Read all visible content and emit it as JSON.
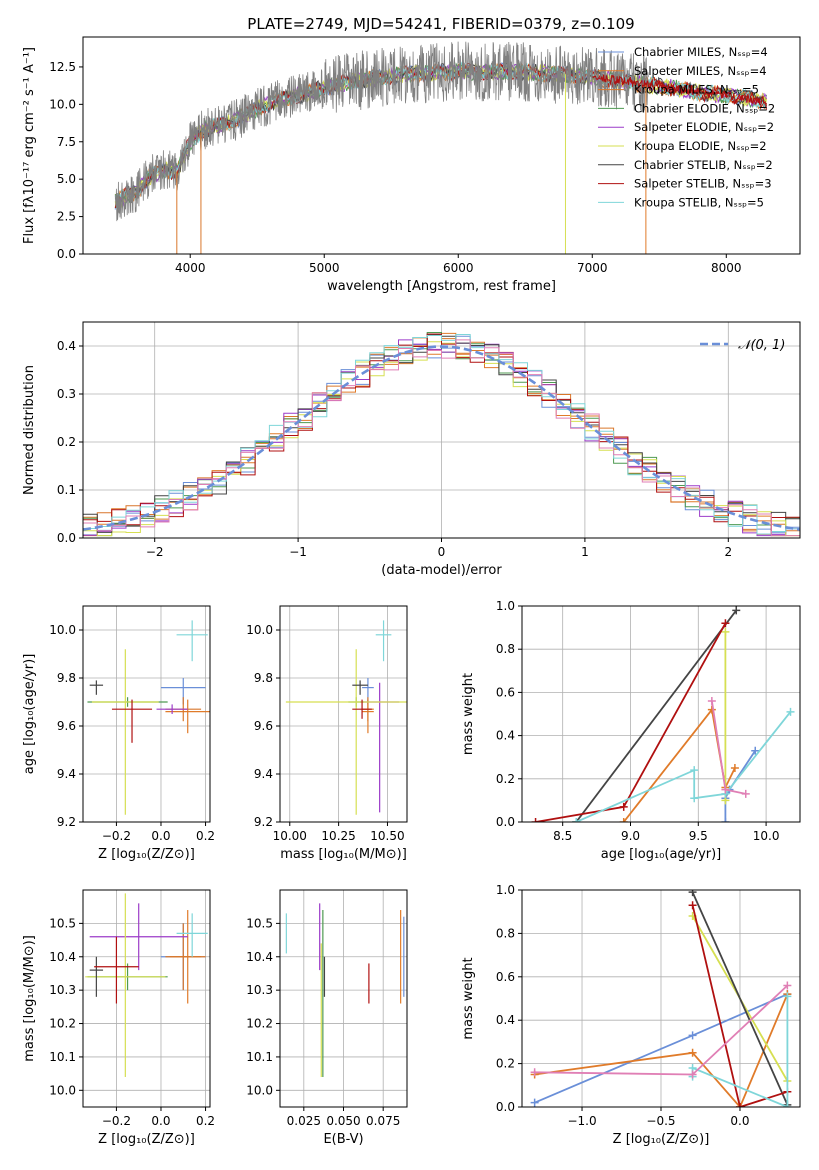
{
  "figure": {
    "title": "PLATE=2749, MJD=54241, FIBERID=0379, z=0.109"
  },
  "colors": {
    "Chabrier MILES": "#6a8fd8",
    "Salpeter MILES": "#e07b2a",
    "Kroupa MILES": "#d9772b",
    "Chabrier ELODIE": "#4f9a52",
    "Salpeter ELODIE": "#9c3cc9",
    "Kroupa ELODIE": "#d6df52",
    "Chabrier STELIB": "#444444",
    "Salpeter STELIB": "#b01010",
    "Kroupa STELIB": "#7fd6d9",
    "data": "#808080",
    "pink": "#e07fb5",
    "gauss": "#6a8fd8"
  },
  "chart_data": [
    {
      "id": "spectrum",
      "type": "line",
      "xlabel": "wavelength [Angstrom, rest frame]",
      "ylabel": "Flux [fλ10⁻¹⁷ erg cm⁻² s⁻¹ A⁻¹]",
      "xlim": [
        3200,
        8550
      ],
      "ylim": [
        0,
        14.5
      ],
      "xticks": [
        4000,
        5000,
        6000,
        7000,
        8000
      ],
      "yticks": [
        0.0,
        2.5,
        5.0,
        7.5,
        10.0,
        12.5
      ],
      "legend_position": "upper-right",
      "legend": [
        "Chabrier MILES, Nₛₛₚ=4",
        "Salpeter MILES, Nₛₛₚ=4",
        "Kroupa MILES, Nₛₛₚ=5",
        "Chabrier ELODIE, Nₛₛₚ=2",
        "Salpeter ELODIE, Nₛₛₚ=2",
        "Kroupa ELODIE, Nₛₛₚ=2",
        "Chabrier STELIB, Nₛₛₚ=2",
        "Salpeter STELIB, Nₛₛₚ=3",
        "Kroupa STELIB, Nₛₛₚ=5"
      ],
      "legend_models": [
        "Chabrier MILES",
        "Salpeter MILES",
        "Kroupa MILES",
        "Chabrier ELODIE",
        "Salpeter ELODIE",
        "Kroupa ELODIE",
        "Chabrier STELIB",
        "Salpeter STELIB",
        "Kroupa STELIB"
      ],
      "continuum": {
        "x": [
          3440,
          3600,
          3700,
          3800,
          3900,
          4000,
          4100,
          4300,
          4500,
          4700,
          4900,
          5000,
          5200,
          5400,
          5600,
          5800,
          6000,
          6200,
          6400,
          6600,
          6800,
          7000,
          7200,
          7400,
          7600,
          7800,
          8000,
          8300
        ],
        "y": [
          3.5,
          4.2,
          5.2,
          5.6,
          5.5,
          7.5,
          8.3,
          8.8,
          9.7,
          10.4,
          10.8,
          11.1,
          11.5,
          11.8,
          12.0,
          12.1,
          12.2,
          12.2,
          12.2,
          12.1,
          12.0,
          11.8,
          11.6,
          11.3,
          11.1,
          10.8,
          10.6,
          10.2
        ]
      },
      "data_xrange": [
        3440,
        7420
      ],
      "dropouts": [
        {
          "x": 3900,
          "model": "Kroupa MILES"
        },
        {
          "x": 4080,
          "model": "Kroupa MILES"
        },
        {
          "x": 6800,
          "model": "Kroupa ELODIE"
        },
        {
          "x": 7400,
          "model": "Salpeter MILES"
        }
      ]
    },
    {
      "id": "residuals",
      "type": "step",
      "xlabel": "(data-model)/error",
      "ylabel": "Normed distribution",
      "xlim": [
        -2.5,
        2.5
      ],
      "ylim": [
        0,
        0.45
      ],
      "xticks": [
        -2,
        -1,
        0,
        1,
        2
      ],
      "yticks": [
        0.0,
        0.1,
        0.2,
        0.3,
        0.4
      ],
      "legend": [
        "𝒩(0, 1)"
      ],
      "legend_position": "upper-right",
      "bin_width": 0.1
    },
    {
      "id": "age-vs-Z",
      "type": "scatter",
      "xlabel": "Z [log₁₀(Z/Z⊙)]",
      "ylabel": "age  [log₁₀(age/yr)]",
      "xlim": [
        -0.35,
        0.22
      ],
      "ylim": [
        9.2,
        10.1
      ],
      "xticks": [
        -0.2,
        0.0,
        0.2
      ],
      "yticks": [
        9.2,
        9.4,
        9.6,
        9.8,
        10.0
      ],
      "points": [
        {
          "model": "Chabrier MILES",
          "x": 0.1,
          "y": 9.76,
          "xerr": 0.1,
          "yerr": [
            0.07,
            0.04
          ]
        },
        {
          "model": "Salpeter MILES",
          "x": 0.12,
          "y": 9.66,
          "xerr": 0.1,
          "yerr": [
            0.09,
            0.05
          ]
        },
        {
          "model": "Kroupa MILES",
          "x": 0.1,
          "y": 9.67,
          "xerr": 0.08,
          "yerr": [
            0.05,
            0.05
          ]
        },
        {
          "model": "Chabrier ELODIE",
          "x": -0.15,
          "y": 9.7,
          "xerr": 0.18,
          "yerr": [
            0.02,
            0.02
          ]
        },
        {
          "model": "Salpeter ELODIE",
          "x": 0.05,
          "y": 9.67,
          "xerr": 0.07,
          "yerr": [
            0.02,
            0.02
          ]
        },
        {
          "model": "Kroupa ELODIE",
          "x": -0.16,
          "y": 9.7,
          "xerr": 0.15,
          "yerr": [
            0.47,
            0.22
          ]
        },
        {
          "model": "Chabrier STELIB",
          "x": -0.29,
          "y": 9.77,
          "xerr": 0.03,
          "yerr": [
            0.04,
            0.02
          ]
        },
        {
          "model": "Salpeter STELIB",
          "x": -0.13,
          "y": 9.67,
          "xerr": 0.09,
          "yerr": [
            0.14,
            0.04
          ]
        },
        {
          "model": "Kroupa STELIB",
          "x": 0.14,
          "y": 9.98,
          "xerr": 0.07,
          "yerr": [
            0.11,
            0.06
          ]
        }
      ]
    },
    {
      "id": "age-vs-mass",
      "type": "scatter",
      "xlabel": "mass [log₁₀(M/M⊙)]",
      "ylabel": "",
      "xlim": [
        9.95,
        10.6
      ],
      "ylim": [
        9.2,
        10.1
      ],
      "xticks": [
        10.0,
        10.25,
        10.5
      ],
      "yticks": [
        9.2,
        9.4,
        9.6,
        9.8,
        10.0
      ],
      "points": [
        {
          "model": "Chabrier MILES",
          "x": 10.4,
          "y": 9.76,
          "xerr": 0.03,
          "yerr": [
            0.07,
            0.04
          ]
        },
        {
          "model": "Salpeter MILES",
          "x": 10.4,
          "y": 9.66,
          "xerr": 0.03,
          "yerr": [
            0.09,
            0.05
          ]
        },
        {
          "model": "Kroupa MILES",
          "x": 10.4,
          "y": 9.67,
          "xerr": 0.03,
          "yerr": [
            0.05,
            0.05
          ]
        },
        {
          "model": "Chabrier ELODIE",
          "x": 10.34,
          "y": 9.7,
          "xerr": 0.04,
          "yerr": [
            0.02,
            0.02
          ]
        },
        {
          "model": "Salpeter ELODIE",
          "x": 10.46,
          "y": 9.7,
          "xerr": 0.1,
          "yerr": [
            0.46,
            0.08
          ]
        },
        {
          "model": "Kroupa ELODIE",
          "x": 10.34,
          "y": 9.7,
          "xerr": 0.36,
          "yerr": [
            0.47,
            0.22
          ]
        },
        {
          "model": "Chabrier STELIB",
          "x": 10.36,
          "y": 9.77,
          "xerr": 0.04,
          "yerr": [
            0.04,
            0.02
          ]
        },
        {
          "model": "Salpeter STELIB",
          "x": 10.37,
          "y": 9.67,
          "xerr": 0.05,
          "yerr": [
            0.04,
            0.04
          ]
        },
        {
          "model": "Kroupa STELIB",
          "x": 10.48,
          "y": 9.98,
          "xerr": 0.04,
          "yerr": [
            0.11,
            0.06
          ]
        }
      ]
    },
    {
      "id": "weight-vs-age",
      "type": "line",
      "xlabel": "age  [log₁₀(age/yr)]",
      "ylabel": "mass weight",
      "xlim": [
        8.2,
        10.25
      ],
      "ylim": [
        0,
        1.0
      ],
      "xticks": [
        8.5,
        9.0,
        9.5,
        10.0
      ],
      "yticks": [
        0.0,
        0.2,
        0.4,
        0.6,
        0.8,
        1.0
      ],
      "series": [
        {
          "model": "Chabrier MILES",
          "x": [
            9.7,
            9.7,
            9.73,
            9.92
          ],
          "y": [
            0.0,
            0.11,
            0.15,
            0.33
          ]
        },
        {
          "model": "Salpeter MILES",
          "x": [
            8.95,
            9.6,
            9.7,
            9.77
          ],
          "y": [
            0.0,
            0.52,
            0.16,
            0.25
          ]
        },
        {
          "model": "Kroupa ELODIE",
          "x": [
            9.7,
            9.7
          ],
          "y": [
            0.88,
            0.1
          ]
        },
        {
          "model": "Chabrier STELIB",
          "x": [
            8.6,
            9.78
          ],
          "y": [
            0.0,
            0.98
          ]
        },
        {
          "model": "Salpeter STELIB",
          "x": [
            8.3,
            8.95,
            9.7
          ],
          "y": [
            0.0,
            0.07,
            0.92
          ]
        },
        {
          "model": "Kroupa STELIB",
          "x": [
            8.6,
            9.47,
            9.47,
            9.7,
            10.18
          ],
          "y": [
            0.0,
            0.24,
            0.11,
            0.13,
            0.51
          ]
        },
        {
          "model": "pink",
          "x": [
            9.6,
            9.7,
            9.85
          ],
          "y": [
            0.56,
            0.15,
            0.13
          ]
        }
      ]
    },
    {
      "id": "mass-vs-Z",
      "type": "scatter",
      "xlabel": "Z [log₁₀(Z/Z⊙)]",
      "ylabel": "mass [log₁₀(M/M⊙)]",
      "xlim": [
        -0.35,
        0.22
      ],
      "ylim": [
        9.95,
        10.6
      ],
      "xticks": [
        -0.2,
        0.0,
        0.2
      ],
      "yticks": [
        10.0,
        10.1,
        10.2,
        10.3,
        10.4,
        10.5
      ],
      "points": [
        {
          "model": "Chabrier MILES",
          "x": 0.1,
          "y": 10.4,
          "xerr": 0.1,
          "yerr": [
            0.1,
            0.1
          ]
        },
        {
          "model": "Salpeter MILES",
          "x": 0.12,
          "y": 10.4,
          "xerr": 0.08,
          "yerr": [
            0.14,
            0.14
          ]
        },
        {
          "model": "Kroupa MILES",
          "x": 0.1,
          "y": 10.4,
          "xerr": 0.08,
          "yerr": [
            0.1,
            0.1
          ]
        },
        {
          "model": "Chabrier ELODIE",
          "x": -0.15,
          "y": 10.34,
          "xerr": 0.18,
          "yerr": [
            0.04,
            0.04
          ]
        },
        {
          "model": "Salpeter ELODIE",
          "x": -0.1,
          "y": 10.46,
          "xerr": 0.22,
          "yerr": [
            0.1,
            0.1
          ]
        },
        {
          "model": "Kroupa ELODIE",
          "x": -0.16,
          "y": 10.34,
          "xerr": 0.18,
          "yerr": [
            0.3,
            0.25
          ]
        },
        {
          "model": "Chabrier STELIB",
          "x": -0.29,
          "y": 10.36,
          "xerr": 0.03,
          "yerr": [
            0.08,
            0.04
          ]
        },
        {
          "model": "Salpeter STELIB",
          "x": -0.2,
          "y": 10.37,
          "xerr": 0.1,
          "yerr": [
            0.11,
            0.09
          ]
        },
        {
          "model": "Kroupa STELIB",
          "x": 0.14,
          "y": 10.47,
          "xerr": 0.07,
          "yerr": [
            0.07,
            0.06
          ]
        }
      ]
    },
    {
      "id": "mass-vs-EBV",
      "type": "scatter",
      "xlabel": "E(B-V)",
      "ylabel": "",
      "xlim": [
        0.01,
        0.09
      ],
      "ylim": [
        9.95,
        10.6
      ],
      "xticks": [
        0.025,
        0.05,
        0.075
      ],
      "yticks": [
        10.0,
        10.1,
        10.2,
        10.3,
        10.4,
        10.5
      ],
      "points": [
        {
          "model": "Chabrier MILES",
          "x": 0.088,
          "y": 10.4,
          "xerr": 0,
          "yerr": [
            0.12,
            0.12
          ]
        },
        {
          "model": "Salpeter MILES",
          "x": 0.086,
          "y": 10.4,
          "xerr": 0,
          "yerr": [
            0.14,
            0.14
          ]
        },
        {
          "model": "Chabrier ELODIE",
          "x": 0.037,
          "y": 10.34,
          "xerr": 0,
          "yerr": [
            0.3,
            0.2
          ]
        },
        {
          "model": "Salpeter ELODIE",
          "x": 0.035,
          "y": 10.46,
          "xerr": 0,
          "yerr": [
            0.1,
            0.1
          ]
        },
        {
          "model": "Kroupa ELODIE",
          "x": 0.036,
          "y": 10.34,
          "xerr": 0,
          "yerr": [
            0.3,
            0.1
          ]
        },
        {
          "model": "Chabrier STELIB",
          "x": 0.038,
          "y": 10.36,
          "xerr": 0,
          "yerr": [
            0.08,
            0.04
          ]
        },
        {
          "model": "Salpeter STELIB",
          "x": 0.066,
          "y": 10.32,
          "xerr": 0,
          "yerr": [
            0.06,
            0.06
          ]
        },
        {
          "model": "Kroupa STELIB",
          "x": 0.014,
          "y": 10.47,
          "xerr": 0,
          "yerr": [
            0.06,
            0.06
          ]
        }
      ]
    },
    {
      "id": "weight-vs-Z",
      "type": "line",
      "xlabel": "Z [log₁₀(Z/Z⊙)]",
      "ylabel": "mass weight",
      "xlim": [
        -1.38,
        0.38
      ],
      "ylim": [
        0,
        1.0
      ],
      "xticks": [
        -1.0,
        -0.5,
        0.0
      ],
      "yticks": [
        0.0,
        0.2,
        0.4,
        0.6,
        0.8,
        1.0
      ],
      "series": [
        {
          "model": "Chabrier MILES",
          "x": [
            -1.3,
            -0.3,
            0.3
          ],
          "y": [
            0.02,
            0.33,
            0.52
          ]
        },
        {
          "model": "Salpeter MILES",
          "x": [
            -1.3,
            -0.3,
            0.0,
            0.3
          ],
          "y": [
            0.15,
            0.25,
            0.0,
            0.52
          ]
        },
        {
          "model": "Kroupa ELODIE",
          "x": [
            -0.3,
            0.3
          ],
          "y": [
            0.88,
            0.12
          ]
        },
        {
          "model": "Chabrier STELIB",
          "x": [
            -0.3,
            0.3
          ],
          "y": [
            0.99,
            0.01
          ]
        },
        {
          "model": "Salpeter STELIB",
          "x": [
            -0.3,
            0.0,
            0.3
          ],
          "y": [
            0.93,
            0.0,
            0.07
          ]
        },
        {
          "model": "Kroupa STELIB",
          "x": [
            -0.3,
            -0.3,
            0.3,
            0.3
          ],
          "y": [
            0.14,
            0.18,
            0.0,
            0.51
          ]
        },
        {
          "model": "pink",
          "x": [
            -1.3,
            -0.3,
            0.3
          ],
          "y": [
            0.16,
            0.15,
            0.56
          ]
        }
      ]
    }
  ]
}
